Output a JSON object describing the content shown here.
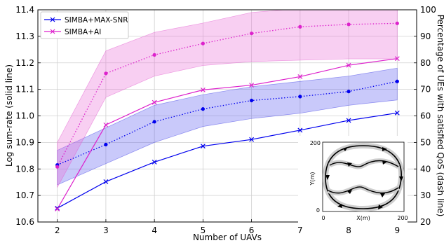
{
  "chart_data": {
    "type": "line",
    "xlabel": "Number of UAVs",
    "ylabel": "Log sum-rate (solid line)",
    "y2label": "Percentage of UEs with satisfied QoS (dash line)",
    "x": [
      2,
      3,
      4,
      5,
      6,
      7,
      8,
      9
    ],
    "xlim": [
      1.6,
      9.4
    ],
    "ylim": [
      10.6,
      11.4
    ],
    "y2lim": [
      20,
      100
    ],
    "xticks": [
      "2",
      "3",
      "4",
      "5",
      "6",
      "7",
      "8",
      "9"
    ],
    "yticks": [
      "10.6",
      "10.7",
      "10.8",
      "10.9",
      "11.0",
      "11.1",
      "11.2",
      "11.3",
      "11.4"
    ],
    "y2ticks": [
      "20",
      "30",
      "40",
      "50",
      "60",
      "70",
      "80",
      "90",
      "100"
    ],
    "grid": true,
    "legend_position": "top-left",
    "series": [
      {
        "name": "SIMBA+MAX-SNR",
        "color": "#0000ee",
        "marker": "x",
        "sum_rate": [
          10.652,
          10.752,
          10.826,
          10.886,
          10.911,
          10.946,
          10.983,
          11.011
        ],
        "qos_pct": [
          41.5,
          49.2,
          57.8,
          62.6,
          65.8,
          67.3,
          69.2,
          73.0
        ],
        "qos_band_low": [
          34.0,
          42.0,
          50.0,
          56.0,
          59.0,
          61.0,
          64.0,
          66.0
        ],
        "qos_band_high": [
          47.0,
          55.5,
          64.0,
          68.0,
          71.0,
          73.0,
          75.0,
          78.0
        ]
      },
      {
        "name": "SIMBA+AI",
        "color": "#dd22cc",
        "marker": "x",
        "sum_rate": [
          10.649,
          10.966,
          11.051,
          11.098,
          11.116,
          11.148,
          11.191,
          11.216
        ],
        "qos_pct": [
          40.8,
          76.0,
          83.0,
          87.3,
          91.1,
          93.6,
          94.5,
          94.9
        ],
        "qos_band_low": [
          33.0,
          67.0,
          75.0,
          79.0,
          80.5,
          81.0,
          81.5,
          81.5
        ],
        "qos_band_high": [
          50.0,
          84.5,
          91.5,
          95.0,
          99.0,
          100.5,
          101.5,
          102.0
        ]
      }
    ]
  },
  "inset": {
    "xlabel": "X(m)",
    "ylabel": "Y(m)",
    "ticks": {
      "y_top": "200",
      "y_bottom": "0",
      "x_left": "0",
      "x_right": "200"
    }
  }
}
